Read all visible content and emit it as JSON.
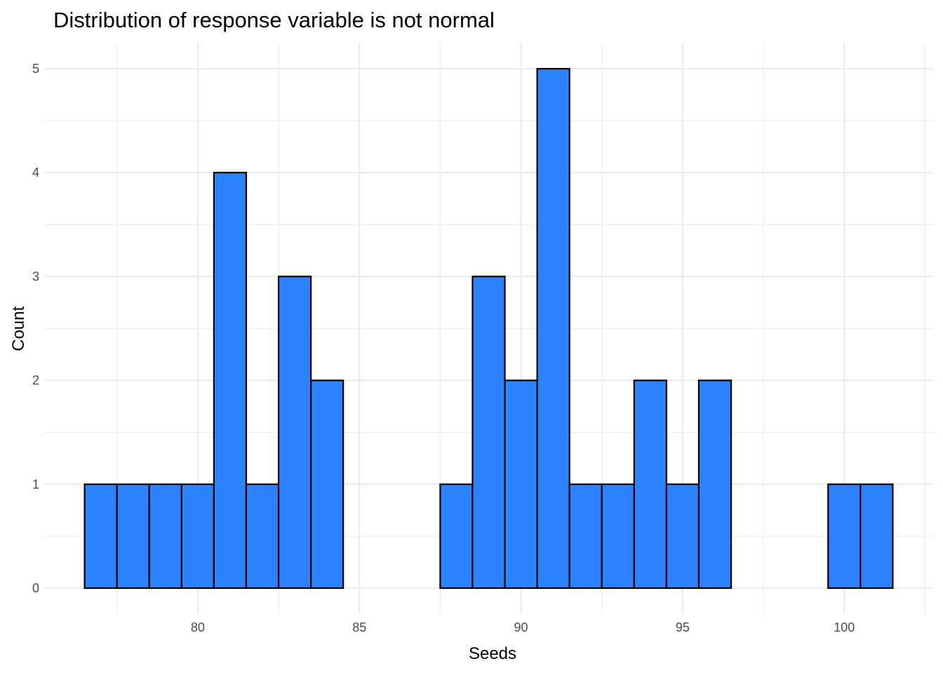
{
  "chart_data": {
    "type": "bar",
    "title": "Distribution of response variable is not normal",
    "xlabel": "Seeds",
    "ylabel": "Count",
    "bar_color": "#2b83ff",
    "bar_outline_color": "#000000",
    "binwidth": 1,
    "bin_centers": [
      77,
      78,
      79,
      80,
      81,
      82,
      83,
      84,
      85,
      86,
      87,
      88,
      89,
      90,
      91,
      92,
      93,
      94,
      95,
      96,
      97,
      98,
      99,
      100,
      101
    ],
    "values": [
      1,
      1,
      1,
      1,
      4,
      1,
      3,
      2,
      0,
      0,
      0,
      1,
      3,
      2,
      5,
      1,
      1,
      2,
      1,
      2,
      0,
      0,
      0,
      1,
      1
    ],
    "xlim": [
      75.25,
      102.75
    ],
    "ylim": [
      -0.25,
      5.25
    ],
    "x_ticks": [
      80,
      85,
      90,
      95,
      100
    ],
    "y_ticks": [
      0,
      1,
      2,
      3,
      4,
      5
    ],
    "grid": true,
    "legend": "none"
  }
}
